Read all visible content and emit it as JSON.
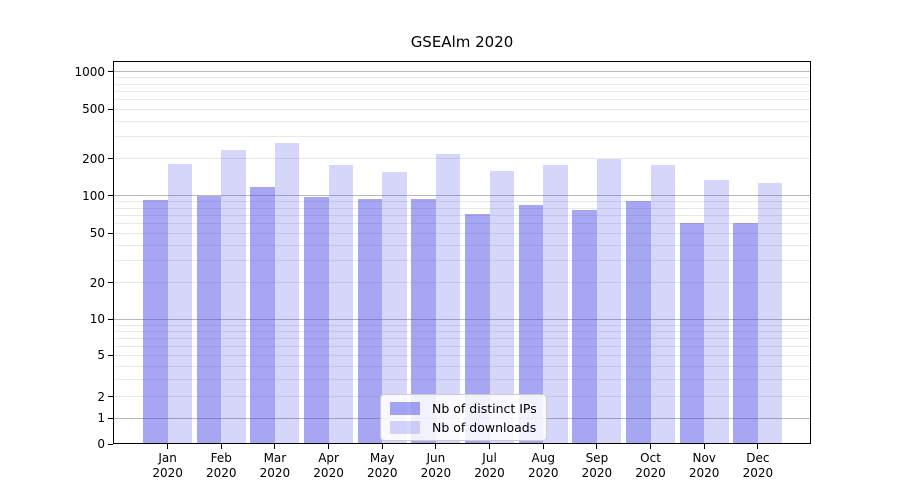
{
  "title": "GSEAlm 2020",
  "colors": {
    "series_distinct_ips": "rgba(70,70,230,0.48)",
    "series_downloads": "rgba(70,70,230,0.22)",
    "grid_major": "#b8b8b8",
    "grid_minor": "#e8e8e8",
    "axis": "#000000",
    "legend_border": "#cccccc",
    "background": "#ffffff"
  },
  "legend": {
    "position": "lower center",
    "items": [
      {
        "label": "Nb of distinct IPs"
      },
      {
        "label": "Nb of downloads"
      }
    ]
  },
  "chart_data": {
    "type": "bar",
    "title": "GSEAlm 2020",
    "categories": [
      "Jan 2020",
      "Feb 2020",
      "Mar 2020",
      "Apr 2020",
      "May 2020",
      "Jun 2020",
      "Jul 2020",
      "Aug 2020",
      "Sep 2020",
      "Oct 2020",
      "Nov 2020",
      "Dec 2020"
    ],
    "series": [
      {
        "name": "Nb of distinct IPs",
        "color": "rgba(70,70,230,0.48)",
        "values": [
          93,
          100,
          118,
          99,
          94,
          95,
          72,
          84,
          77,
          91,
          61,
          61
        ]
      },
      {
        "name": "Nb of downloads",
        "color": "rgba(70,70,230,0.22)",
        "values": [
          180,
          236,
          270,
          177,
          156,
          220,
          158,
          178,
          200,
          177,
          134,
          128
        ]
      }
    ],
    "xlabel": "",
    "ylabel": "",
    "yscale": "symlog (linear near 0, log decades above)",
    "y_ticks": [
      1000,
      500,
      200,
      100,
      50,
      20,
      10,
      5,
      2,
      1,
      0
    ],
    "ylim": [
      0,
      1230
    ],
    "grid": "horizontal minor+major",
    "legend_position": "lower center"
  }
}
